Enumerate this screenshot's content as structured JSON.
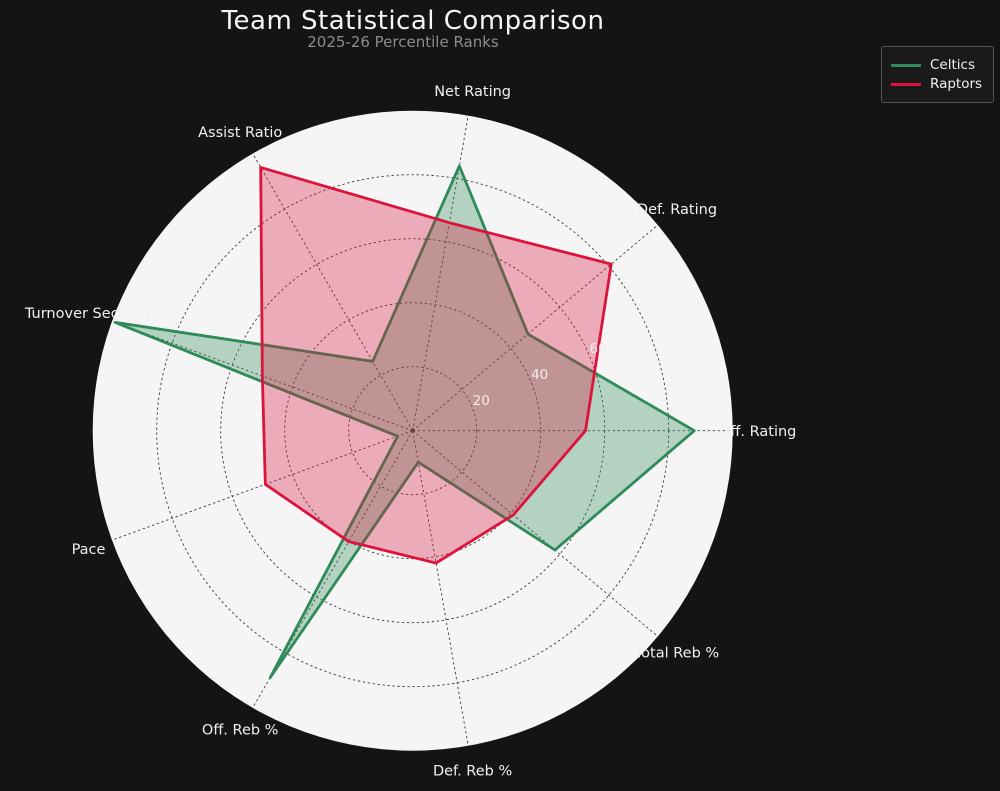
{
  "title": "Team Statistical Comparison",
  "subtitle": "2025-26 Percentile Ranks",
  "legend": {
    "position": "top-right",
    "items": [
      {
        "label": "Celtics",
        "color": "#2e8b57"
      },
      {
        "label": "Raptors",
        "color": "#dc143c"
      }
    ]
  },
  "chart_data": {
    "type": "radar",
    "title": "Team Statistical Comparison",
    "subtitle": "2025-26 Percentile Ranks",
    "categories": [
      "Net Rating",
      "Def. Rating",
      "Off. Rating",
      "Total Reb %",
      "Def. Reb %",
      "Off. Reb %",
      "Pace",
      "Turnover Security",
      "Assist Ratio"
    ],
    "series": [
      {
        "name": "Celtics",
        "color": "#2e8b57",
        "values": [
          84,
          47,
          88,
          58,
          10,
          89,
          5,
          99,
          25
        ]
      },
      {
        "name": "Raptors",
        "color": "#dc143c",
        "values": [
          66,
          81,
          54,
          41,
          42,
          40,
          49,
          50,
          95
        ]
      }
    ],
    "r_ticks": [
      20,
      40,
      60,
      80
    ],
    "r_tick_labels": [
      "20",
      "40",
      "60",
      "80"
    ],
    "r_max": 100,
    "start_angle_deg": 80,
    "direction": "clockwise",
    "grid": "dashed",
    "legend_position": "top-right",
    "colors": {
      "background": "#141414",
      "polar_face": "#f5f5f5",
      "grid_line": "#3c3c3c",
      "axis_label_text": "#f0f0f0",
      "tick_label_text": "#f2eef0",
      "title_text": "#f5f5f5",
      "subtitle_text": "#8c8c8c"
    },
    "fill_opacity": 0.33
  }
}
